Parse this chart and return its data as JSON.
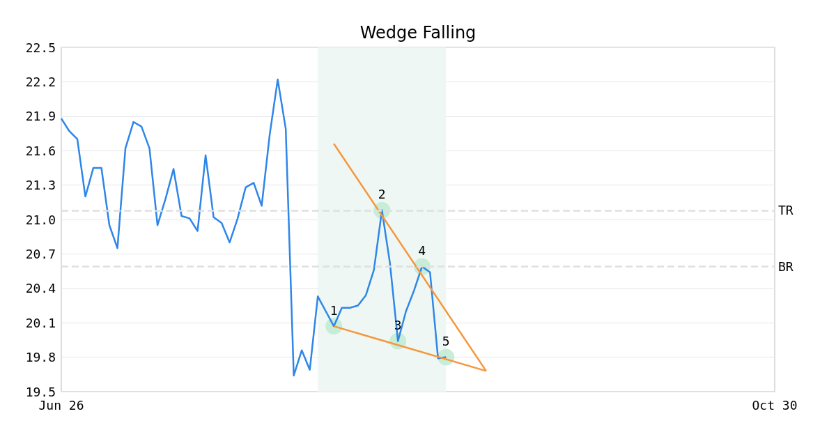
{
  "chart_data": {
    "type": "line",
    "title": "Wedge Falling",
    "categories": [
      "Jun 26",
      null,
      null,
      null,
      null,
      null,
      null,
      null,
      null,
      null,
      null,
      null,
      null,
      null,
      null,
      null,
      null,
      null,
      null,
      null,
      null,
      null,
      null,
      null,
      null,
      null,
      null,
      null,
      null,
      null,
      null,
      null,
      null,
      null,
      null,
      null,
      null,
      null,
      null,
      null,
      null,
      null,
      null,
      null,
      null,
      null,
      null,
      null,
      null,
      null,
      null,
      null,
      null,
      null,
      null,
      null,
      null,
      null,
      null,
      null,
      null,
      null,
      null,
      null,
      null,
      null,
      null,
      null,
      null,
      null,
      null,
      null,
      null,
      null,
      null,
      null,
      null,
      null,
      null,
      null,
      null,
      null,
      null,
      null,
      null,
      null,
      null,
      null,
      null,
      "Oct 30"
    ],
    "series": [
      {
        "color": "#2e86e8",
        "values": [
          21.88,
          21.77,
          21.7,
          21.2,
          21.45,
          21.45,
          20.95,
          20.75,
          21.62,
          21.85,
          21.81,
          21.62,
          20.95,
          21.18,
          21.44,
          21.03,
          21.01,
          20.9,
          21.56,
          21.02,
          20.97,
          20.8,
          21.01,
          21.28,
          21.32,
          21.12,
          21.74,
          22.22,
          21.79,
          19.64,
          19.86,
          19.69,
          20.33,
          20.2,
          20.07,
          20.23,
          20.23,
          20.25,
          20.34,
          20.56,
          21.08,
          20.62,
          19.94,
          20.2,
          20.38,
          20.59,
          20.54,
          19.79,
          19.8,
          null,
          null,
          null,
          null,
          null,
          null,
          null,
          null,
          null,
          null,
          null,
          null,
          null,
          null,
          null,
          null,
          null,
          null,
          null,
          null,
          null,
          null,
          null,
          null,
          null,
          null,
          null,
          null,
          null,
          null,
          null,
          null,
          null,
          null,
          null,
          null,
          null,
          null,
          null,
          null,
          null
        ]
      },
      {
        "type": "line",
        "color": "#f5973d",
        "values": [
          null,
          null,
          null,
          null,
          null,
          null,
          null,
          null,
          null,
          null,
          null,
          null,
          null,
          null,
          null,
          null,
          null,
          null,
          null,
          null,
          null,
          null,
          null,
          null,
          null,
          null,
          null,
          null,
          null,
          null,
          null,
          null,
          null,
          null,
          21.66,
          null,
          null,
          null,
          null,
          null,
          null,
          null,
          null,
          null,
          null,
          null,
          null,
          null,
          null,
          null,
          null,
          null,
          null,
          19.68,
          null,
          null,
          null,
          null,
          null,
          null,
          null,
          null,
          null,
          null,
          null,
          null,
          null,
          null,
          null,
          null,
          null,
          null,
          null,
          null,
          null,
          null,
          null,
          null,
          null,
          null,
          null,
          null,
          null,
          null,
          null,
          null,
          null,
          null,
          null,
          null
        ]
      },
      {
        "type": "line",
        "color": "#f5973d",
        "values": [
          null,
          null,
          null,
          null,
          null,
          null,
          null,
          null,
          null,
          null,
          null,
          null,
          null,
          null,
          null,
          null,
          null,
          null,
          null,
          null,
          null,
          null,
          null,
          null,
          null,
          null,
          null,
          null,
          null,
          null,
          null,
          null,
          null,
          null,
          20.07,
          null,
          null,
          null,
          null,
          null,
          null,
          null,
          null,
          null,
          null,
          null,
          null,
          null,
          null,
          null,
          null,
          null,
          null,
          19.68,
          null,
          null,
          null,
          null,
          null,
          null,
          null,
          null,
          null,
          null,
          null,
          null,
          null,
          null,
          null,
          null,
          null,
          null,
          null,
          null,
          null,
          null,
          null,
          null,
          null,
          null,
          null,
          null,
          null,
          null,
          null,
          null,
          null,
          null,
          null,
          null
        ]
      },
      {
        "type": "scatter",
        "color": "#bde9d0",
        "values": [
          null,
          null,
          null,
          null,
          null,
          null,
          null,
          null,
          null,
          null,
          null,
          null,
          null,
          null,
          null,
          null,
          null,
          null,
          null,
          null,
          null,
          null,
          null,
          null,
          null,
          null,
          null,
          null,
          null,
          null,
          null,
          null,
          null,
          null,
          20.07,
          null,
          null,
          null,
          null,
          null,
          21.08,
          null,
          19.94,
          null,
          null,
          20.59,
          null,
          null,
          19.8,
          null,
          null,
          null,
          null,
          null,
          null,
          null,
          null,
          null,
          null,
          null,
          null,
          null,
          null,
          null,
          null,
          null,
          null,
          null,
          null,
          null,
          null,
          null,
          null,
          null,
          null,
          null,
          null,
          null,
          null,
          null,
          null,
          null,
          null,
          null,
          null,
          null,
          null,
          null,
          null,
          null
        ]
      }
    ],
    "ylim": [
      19.5,
      22.5
    ],
    "yticks": [
      19.5,
      19.8,
      20.1,
      20.4,
      20.7,
      {
        "value": 21,
        "label": "21.0"
      },
      21.3,
      21.6,
      21.9,
      22.2,
      22.5
    ],
    "grid": "y",
    "ref_lines": [
      {
        "axis": "y",
        "value": 21.08,
        "label": "TR",
        "color": "#e0e0e0",
        "line_style": "dashed"
      },
      {
        "axis": "y",
        "value": 20.59,
        "label": "BR",
        "color": "#e0e0e0",
        "line_style": "dashed"
      }
    ],
    "annotations": [
      "1",
      "2",
      "3",
      "4",
      "5"
    ]
  }
}
